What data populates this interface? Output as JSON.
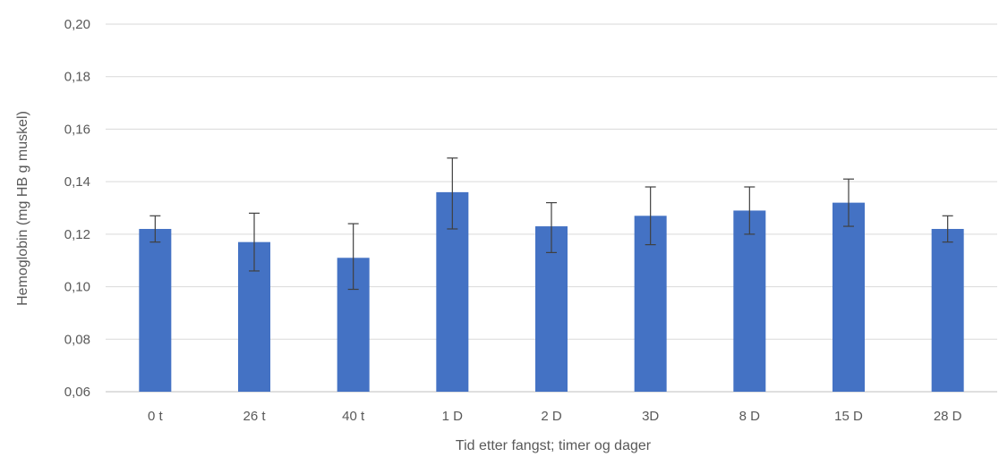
{
  "chart_data": {
    "type": "bar",
    "title": "",
    "xlabel": "Tid etter fangst; timer og dager",
    "ylabel": "Hemoglobin (mg HB g muskel)",
    "categories": [
      "0 t",
      "26 t",
      "40 t",
      "1 D",
      "2 D",
      "3D",
      "8 D",
      "15 D",
      "28 D"
    ],
    "values": [
      0.122,
      0.117,
      0.111,
      0.136,
      0.123,
      0.127,
      0.129,
      0.132,
      0.122
    ],
    "error_upper": [
      0.127,
      0.128,
      0.124,
      0.149,
      0.132,
      0.138,
      0.138,
      0.141,
      0.127
    ],
    "error_lower": [
      0.117,
      0.106,
      0.099,
      0.122,
      0.113,
      0.116,
      0.12,
      0.123,
      0.117
    ],
    "ylim": [
      0.06,
      0.2
    ],
    "yticks": [
      "0,06",
      "0,08",
      "0,10",
      "0,12",
      "0,14",
      "0,16",
      "0,18",
      "0,20"
    ],
    "grid": true,
    "bar_color": "#4472c4"
  }
}
